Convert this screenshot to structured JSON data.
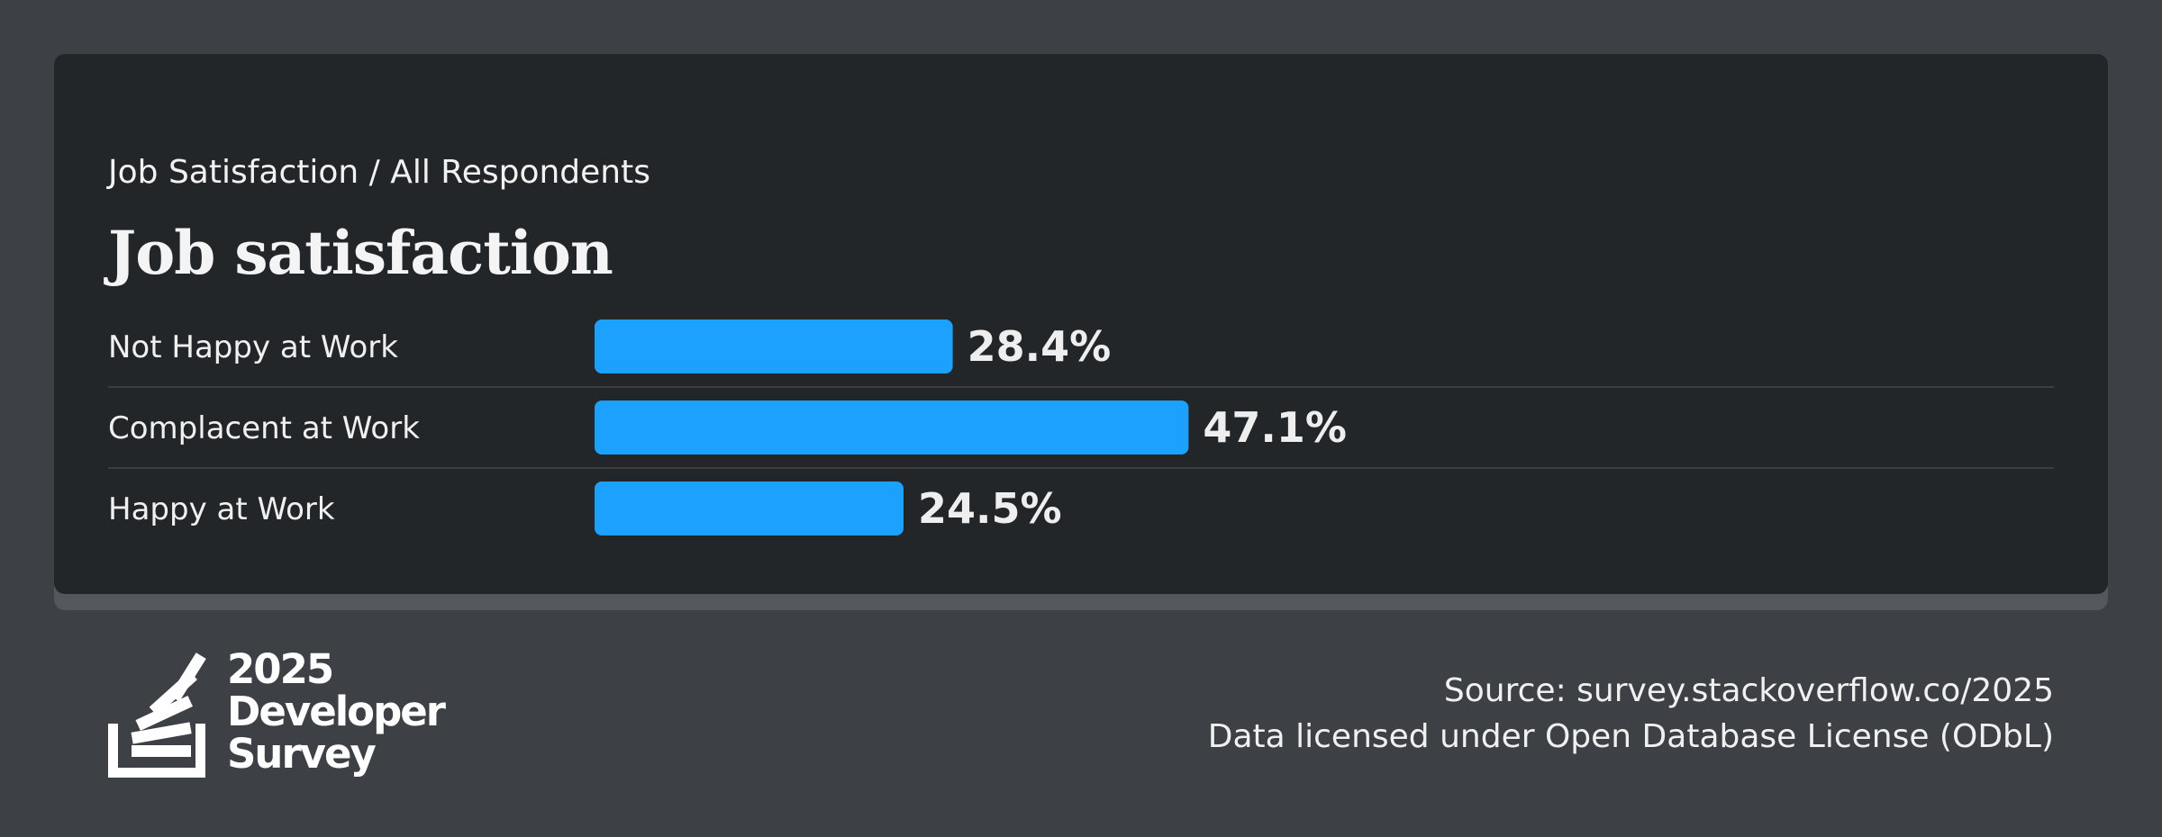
{
  "header": {
    "breadcrumb": "Job Satisfaction / All Respondents",
    "title": "Job satisfaction"
  },
  "chart_data": {
    "type": "bar",
    "orientation": "horizontal",
    "categories": [
      "Not Happy at Work",
      "Complacent at Work",
      "Happy at Work"
    ],
    "values": [
      28.4,
      47.1,
      24.5
    ],
    "value_labels": [
      "28.4%",
      "47.1%",
      "24.5%"
    ],
    "unit": "%",
    "title": "Job satisfaction",
    "bar_color": "#1ca1ff",
    "grid": false,
    "legend": "none"
  },
  "footer": {
    "source": "Source: survey.stackoverflow.co/2025",
    "license": "Data licensed under Open Database License (ODbL)"
  },
  "logo": {
    "icon": "stack-overflow-logo-icon",
    "line1": "2025",
    "line2": "Developer",
    "line3": "Survey"
  },
  "colors": {
    "background": "#3d4146",
    "card": "#232629",
    "bar": "#1ca1ff",
    "text": "#f0f0f0"
  }
}
